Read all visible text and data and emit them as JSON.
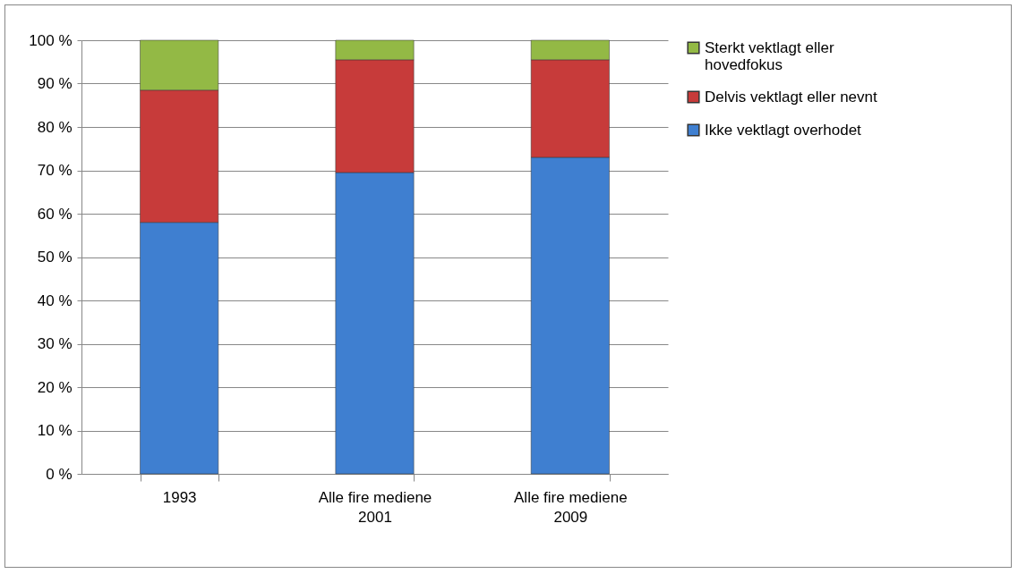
{
  "chart_data": {
    "type": "bar",
    "stacked": true,
    "categories": [
      "1993",
      "Alle fire mediene\n2001",
      "Alle fire mediene\n2009"
    ],
    "series": [
      {
        "name": "Ikke vektlagt overhodet",
        "color": "#3f7fd0",
        "values": [
          58,
          69.5,
          73
        ]
      },
      {
        "name": "Delvis vektlagt eller nevnt",
        "color": "#c73b3a",
        "values": [
          30.5,
          26,
          22.5
        ]
      },
      {
        "name": "Sterkt vektlagt eller\nhovedfokus",
        "color": "#93b945",
        "values": [
          11.5,
          4.5,
          4.5
        ]
      }
    ],
    "ylim": [
      0,
      100
    ],
    "yticks": [
      {
        "value": 0,
        "label": "0 %"
      },
      {
        "value": 10,
        "label": "10 %"
      },
      {
        "value": 20,
        "label": "20 %"
      },
      {
        "value": 30,
        "label": "30 %"
      },
      {
        "value": 40,
        "label": "40 %"
      },
      {
        "value": 50,
        "label": "50 %"
      },
      {
        "value": 60,
        "label": "60 %"
      },
      {
        "value": 70,
        "label": "70 %"
      },
      {
        "value": 80,
        "label": "80 %"
      },
      {
        "value": 90,
        "label": "90 %"
      },
      {
        "value": 100,
        "label": "100 %"
      }
    ],
    "grid": "y",
    "legend": "right"
  }
}
